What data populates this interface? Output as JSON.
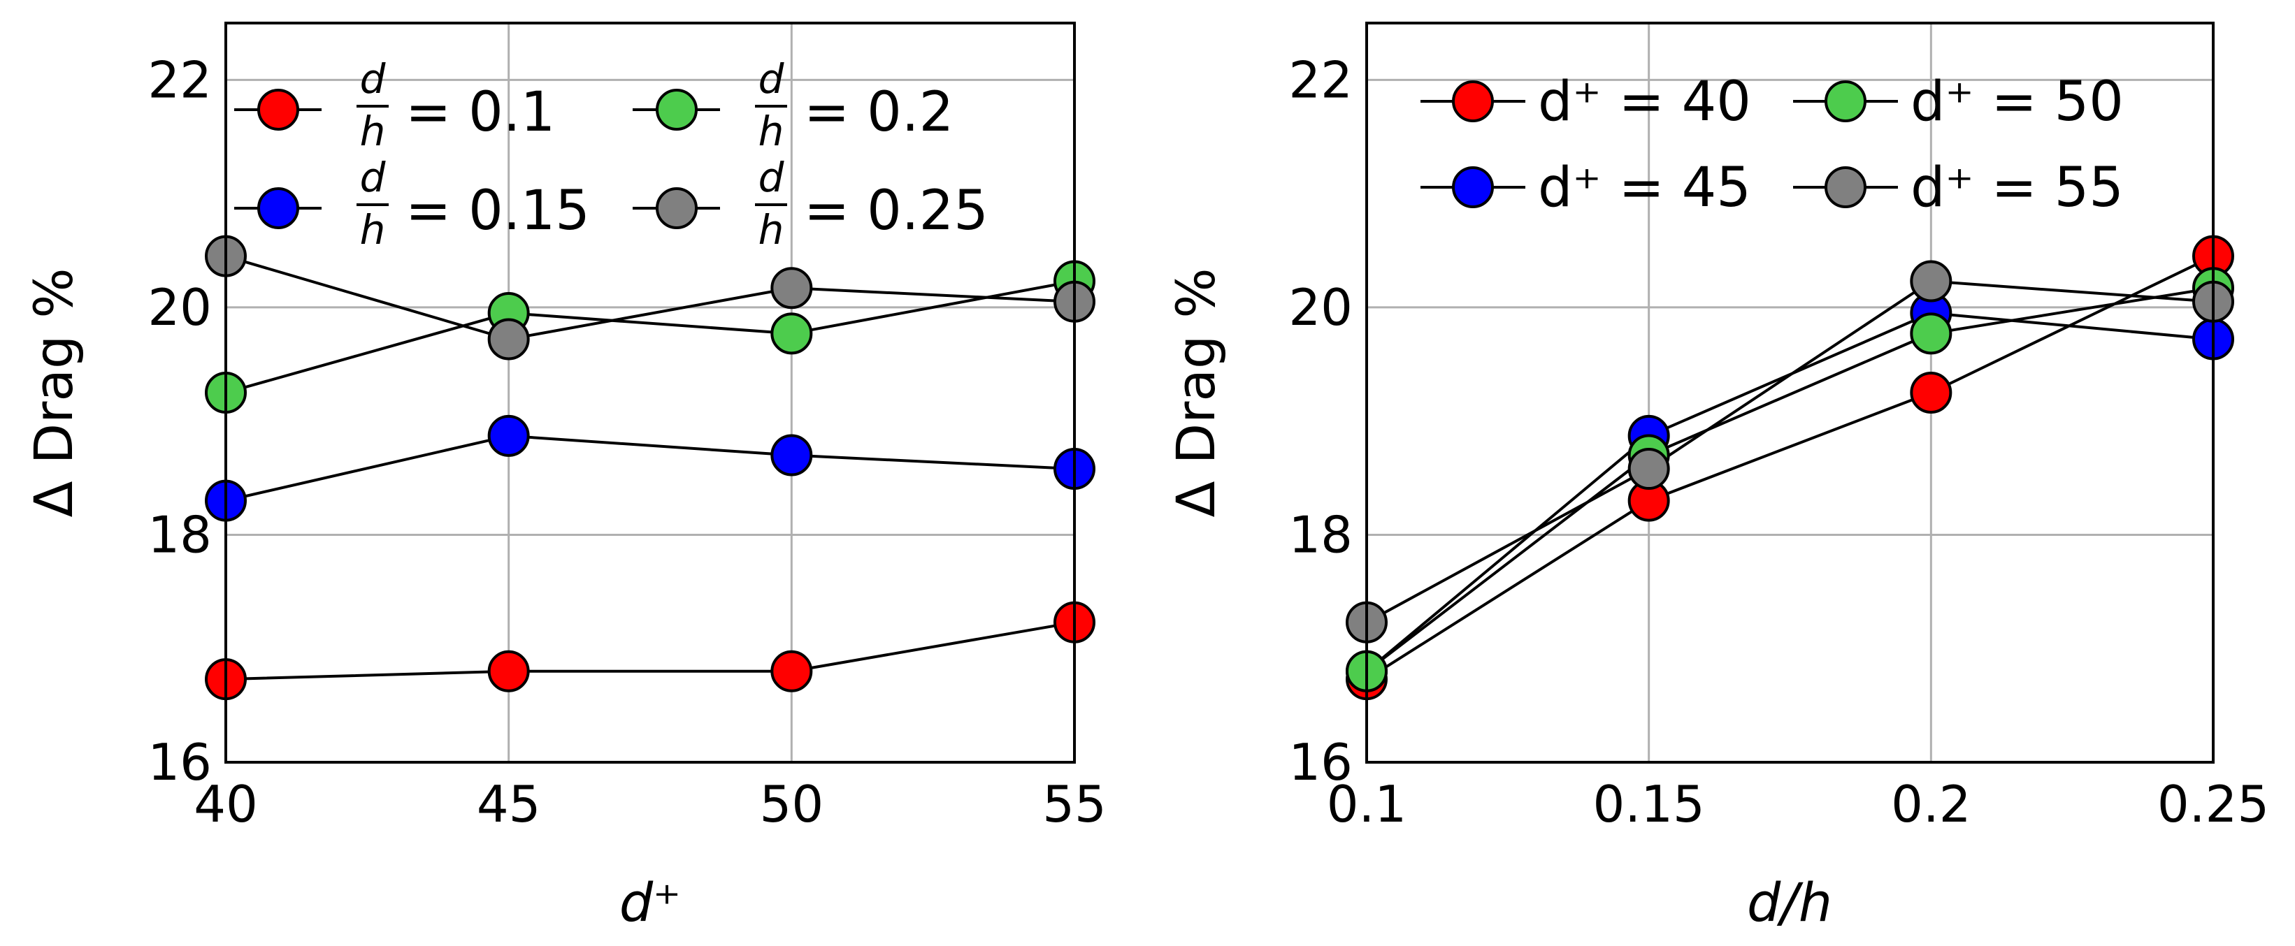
{
  "colors": {
    "red": "#ff0000",
    "blue": "#0000ff",
    "green": "#4dcc4d",
    "gray": "#808080",
    "line": "#000000",
    "grid": "#b0b0b0"
  },
  "chart_data": [
    {
      "type": "line",
      "title": "",
      "xlabel": "d⁺",
      "ylabel": "Δ Drag  %",
      "x": [
        40,
        45,
        50,
        55
      ],
      "xticks": [
        "40",
        "45",
        "50",
        "55"
      ],
      "yticks": [
        "16",
        "18",
        "20",
        "22"
      ],
      "xlim": [
        40,
        55
      ],
      "ylim": [
        16,
        22.5
      ],
      "grid": true,
      "legend_position": "top",
      "series": [
        {
          "name": "d/h = 0.1",
          "legend_num": "d",
          "legend_den": "h",
          "legend_value": "= 0.1",
          "color": "red",
          "values": [
            16.73,
            16.8,
            16.8,
            17.23
          ]
        },
        {
          "name": "d/h = 0.15",
          "legend_num": "d",
          "legend_den": "h",
          "legend_value": "= 0.15",
          "color": "blue",
          "values": [
            18.3,
            18.87,
            18.7,
            18.58
          ]
        },
        {
          "name": "d/h = 0.2",
          "legend_num": "d",
          "legend_den": "h",
          "legend_value": "= 0.2",
          "color": "green",
          "values": [
            19.25,
            19.95,
            19.77,
            20.23
          ]
        },
        {
          "name": "d/h = 0.25",
          "legend_num": "d",
          "legend_den": "h",
          "legend_value": "= 0.25",
          "color": "gray",
          "values": [
            20.45,
            19.72,
            20.17,
            20.05
          ]
        }
      ]
    },
    {
      "type": "line",
      "title": "",
      "xlabel": "d/h",
      "ylabel": "Δ Drag  %",
      "x": [
        0.1,
        0.15,
        0.2,
        0.25
      ],
      "xticks": [
        "0.1",
        "0.15",
        "0.2",
        "0.25"
      ],
      "yticks": [
        "16",
        "18",
        "20",
        "22"
      ],
      "xlim": [
        0.1,
        0.25
      ],
      "ylim": [
        16,
        22.5
      ],
      "grid": true,
      "legend_position": "top",
      "series": [
        {
          "name": "d⁺ = 40",
          "color": "red",
          "values": [
            16.73,
            18.3,
            19.25,
            20.45
          ]
        },
        {
          "name": "d⁺ = 45",
          "color": "blue",
          "values": [
            16.8,
            18.87,
            19.95,
            19.72
          ]
        },
        {
          "name": "d⁺ = 50",
          "color": "green",
          "values": [
            16.8,
            18.7,
            19.77,
            20.17
          ]
        },
        {
          "name": "d⁺ = 55",
          "color": "gray",
          "values": [
            17.23,
            18.58,
            20.23,
            20.05
          ]
        }
      ]
    }
  ]
}
